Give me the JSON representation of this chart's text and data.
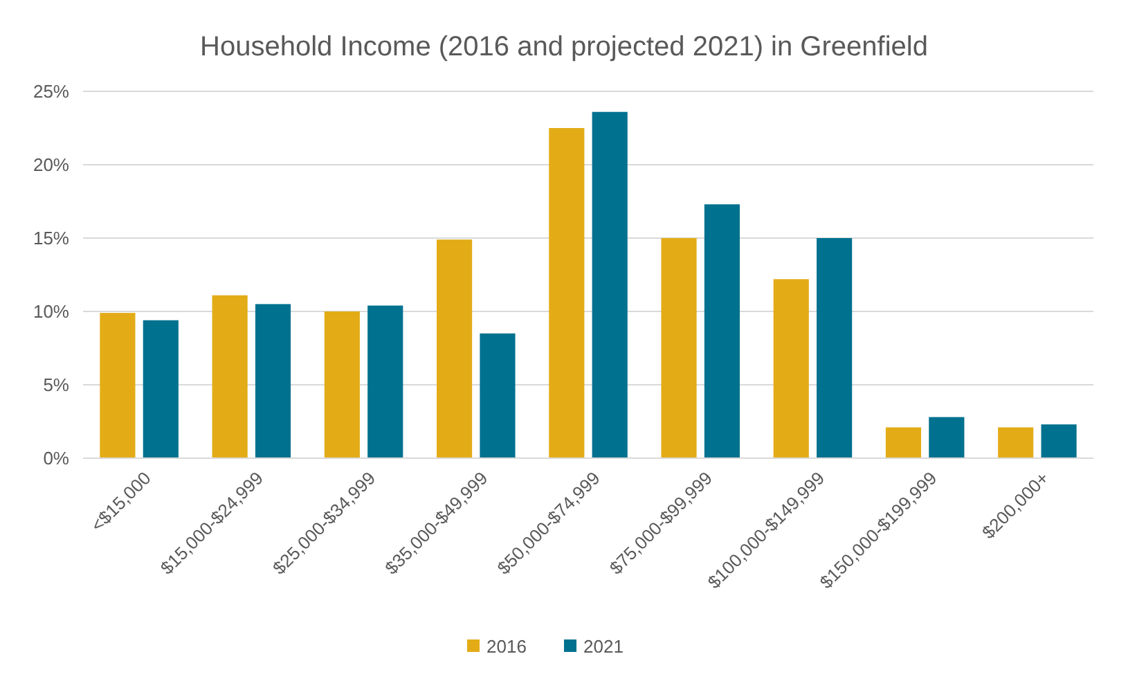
{
  "chart_data": {
    "type": "bar",
    "title": "Household Income (2016 and projected 2021) in Greenfield",
    "categories": [
      "<$15,000",
      "$15,000-$24,999",
      "$25,000-$34,999",
      "$35,000-$49,999",
      "$50,000-$74,999",
      "$75,000-$99,999",
      "$100,000-$149,999",
      "$150,000-$199,999",
      "$200,000+"
    ],
    "series": [
      {
        "name": "2016",
        "color": "#e3ac17",
        "values": [
          9.9,
          11.1,
          10.0,
          14.9,
          22.5,
          15.0,
          12.2,
          2.1,
          2.1
        ]
      },
      {
        "name": "2021",
        "color": "#00718f",
        "values": [
          9.4,
          10.5,
          10.4,
          8.5,
          23.6,
          17.3,
          15.0,
          2.8,
          2.3
        ]
      }
    ],
    "ylim": [
      0,
      25
    ],
    "yticks": [
      {
        "value": 0,
        "label": "0%"
      },
      {
        "value": 5,
        "label": "5%"
      },
      {
        "value": 10,
        "label": "10%"
      },
      {
        "value": 15,
        "label": "15%"
      },
      {
        "value": 20,
        "label": "20%"
      },
      {
        "value": 25,
        "label": "25%"
      }
    ],
    "grid": "y",
    "legend": "bottom"
  }
}
